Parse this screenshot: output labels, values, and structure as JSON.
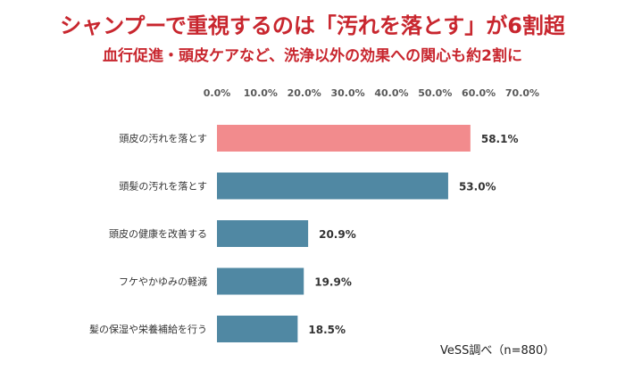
{
  "chart_data": {
    "type": "bar",
    "orientation": "horizontal",
    "title": "シャンプーで重視するのは「汚れを落とす」が6割超",
    "subtitle": "血行促進・頭皮ケアなど、洗浄以外の効果への関心も約2割に",
    "categories": [
      "頭皮の汚れを落とす",
      "頭髪の汚れを落とす",
      "頭皮の健康を改善する",
      "フケやかゆみの軽減",
      "髪の保湿や栄養補給を行う"
    ],
    "values": [
      58.1,
      53.0,
      20.9,
      19.9,
      18.5
    ],
    "value_labels": [
      "58.1%",
      "53.0%",
      "20.9%",
      "19.9%",
      "18.5%"
    ],
    "x_ticks": [
      "0.0%",
      "10.0%",
      "20.0%",
      "30.0%",
      "40.0%",
      "50.0%",
      "60.0%",
      "70.0%"
    ],
    "xlim": [
      0,
      70
    ],
    "axis_position": "top",
    "grid": false,
    "legend": "none",
    "source": "VeSS調べ（n=880）",
    "colors": {
      "highlight": "#f28b8d",
      "bar": "#5088a3",
      "title": "#c8262e"
    }
  }
}
